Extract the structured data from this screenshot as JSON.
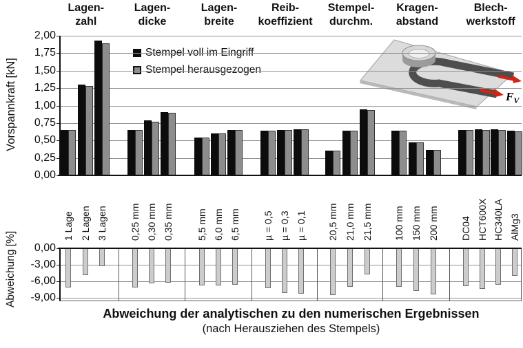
{
  "palette": {
    "series_voll": "#0c0c0c",
    "series_herausgezogen": "#8d8d8d",
    "series_abweichung": "#cccccc",
    "gridline": "#8f8f8f",
    "arrow_red": "#d42313"
  },
  "inset": {
    "force_symbol": "F",
    "force_subscript": "V"
  },
  "chart_data": [
    {
      "type": "bar",
      "title": "",
      "ylabel": "Vorspannkraft [kN]",
      "ylim": [
        0,
        2.0
      ],
      "ytick_step": 0.25,
      "yticks": [
        "2,00",
        "1,75",
        "1,50",
        "1,25",
        "1,00",
        "0,75",
        "0,50",
        "0,25",
        "0,00"
      ],
      "grid": true,
      "legend_position": "top-left-inside",
      "legend": [
        "Stempel voll im Eingriff",
        "Stempel herausgezogen"
      ],
      "groups": [
        {
          "header": "Lagen-\nzahl",
          "categories": [
            "1 Lage",
            "2 Lagen",
            "3 Lagen"
          ],
          "series": [
            {
              "name": "Stempel voll im Eingriff",
              "values": [
                0.65,
                1.3,
                1.93
              ]
            },
            {
              "name": "Stempel herausgezogen",
              "values": [
                0.65,
                1.28,
                1.89
              ]
            }
          ]
        },
        {
          "header": "Lagen-\ndicke",
          "categories": [
            "0,25 mm",
            "0,30 mm",
            "0,35 mm"
          ],
          "series": [
            {
              "name": "Stempel voll im Eingriff",
              "values": [
                0.65,
                0.79,
                0.91
              ]
            },
            {
              "name": "Stempel herausgezogen",
              "values": [
                0.65,
                0.77,
                0.9
              ]
            }
          ]
        },
        {
          "header": "Lagen-\nbreite",
          "categories": [
            "5,5 mm",
            "6,0 mm",
            "6,5 mm"
          ],
          "series": [
            {
              "name": "Stempel voll im Eingriff",
              "values": [
                0.54,
                0.6,
                0.65
              ]
            },
            {
              "name": "Stempel herausgezogen",
              "values": [
                0.54,
                0.6,
                0.65
              ]
            }
          ]
        },
        {
          "header": "Reib-\nkoeffizient",
          "categories": [
            "µ = 0,5",
            "µ = 0,3",
            "µ = 0,1"
          ],
          "series": [
            {
              "name": "Stempel voll im Eingriff",
              "values": [
                0.64,
                0.65,
                0.66
              ]
            },
            {
              "name": "Stempel herausgezogen",
              "values": [
                0.64,
                0.65,
                0.66
              ]
            }
          ]
        },
        {
          "header": "Stempel-\ndurchm.",
          "categories": [
            "20,5 mm",
            "21,0 mm",
            "21,5 mm"
          ],
          "series": [
            {
              "name": "Stempel voll im Eingriff",
              "values": [
                0.35,
                0.64,
                0.95
              ]
            },
            {
              "name": "Stempel herausgezogen",
              "values": [
                0.35,
                0.64,
                0.94
              ]
            }
          ]
        },
        {
          "header": "Kragen-\nabstand",
          "categories": [
            "100 mm",
            "150 mm",
            "200 mm"
          ],
          "series": [
            {
              "name": "Stempel voll im Eingriff",
              "values": [
                0.64,
                0.47,
                0.36
              ]
            },
            {
              "name": "Stempel herausgezogen",
              "values": [
                0.64,
                0.47,
                0.36
              ]
            }
          ]
        },
        {
          "header": "Blech-\nwerkstoff",
          "categories": [
            "DC04",
            "HCT600X",
            "HC340LA",
            "AlMg3"
          ],
          "series": [
            {
              "name": "Stempel voll im Eingriff",
              "values": [
                0.65,
                0.66,
                0.66,
                0.64
              ]
            },
            {
              "name": "Stempel herausgezogen",
              "values": [
                0.65,
                0.65,
                0.65,
                0.63
              ]
            }
          ]
        }
      ]
    },
    {
      "type": "bar",
      "title": "Abweichung der analytischen zu den numerischen Ergebnissen",
      "subtitle": "(nach Herausziehen des Stempels)",
      "ylabel": "Abweichung [%]",
      "ylim": [
        -9,
        0
      ],
      "ytick_step": -3,
      "yticks": [
        "0,00",
        "-3,00",
        "-6,00",
        "-9,00"
      ],
      "grid": true,
      "groups": [
        {
          "header": "Lagen-\nzahl",
          "categories": [
            "1 Lage",
            "2 Lagen",
            "3 Lagen"
          ],
          "values": [
            -7.1,
            -4.9,
            -3.2
          ]
        },
        {
          "header": "Lagen-\ndicke",
          "categories": [
            "0,25 mm",
            "0,30 mm",
            "0,35 mm"
          ],
          "values": [
            -7.1,
            -6.4,
            -6.3
          ]
        },
        {
          "header": "Lagen-\nbreite",
          "categories": [
            "5,5 mm",
            "6,0 mm",
            "6,5 mm"
          ],
          "values": [
            -6.8,
            -6.7,
            -6.6
          ]
        },
        {
          "header": "Reib-\nkoeffizient",
          "categories": [
            "µ = 0,5",
            "µ = 0,3",
            "µ = 0,1"
          ],
          "values": [
            -7.2,
            -8.1,
            -8.3
          ]
        },
        {
          "header": "Stempel-\ndurchm.",
          "categories": [
            "20,5 mm",
            "21,0 mm",
            "21,5 mm"
          ],
          "values": [
            -8.5,
            -7.0,
            -4.8
          ]
        },
        {
          "header": "Kragen-\nabstand",
          "categories": [
            "100 mm",
            "150 mm",
            "200 mm"
          ],
          "values": [
            -7.0,
            -7.8,
            -8.4
          ]
        },
        {
          "header": "Blech-\nwerkstoff",
          "categories": [
            "DC04",
            "HCT600X",
            "HC340LA",
            "AlMg3"
          ],
          "values": [
            -6.9,
            -7.4,
            -6.6,
            -5.0
          ]
        }
      ]
    }
  ]
}
